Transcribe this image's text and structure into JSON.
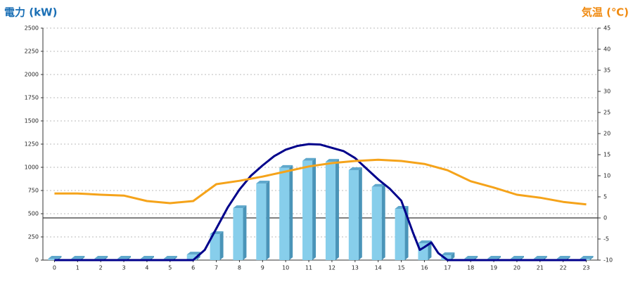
{
  "chart_data": {
    "type": "bar",
    "y_title": "電力 (kW)",
    "y2_title": "気温 (℃)",
    "categories": [
      "0",
      "1",
      "2",
      "3",
      "4",
      "5",
      "6",
      "7",
      "8",
      "9",
      "10",
      "11",
      "12",
      "13",
      "14",
      "15",
      "16",
      "17",
      "18",
      "19",
      "20",
      "21",
      "22",
      "23"
    ],
    "series": [
      {
        "type": "bar",
        "color": "#87ceeb",
        "values": [
          15,
          15,
          15,
          15,
          15,
          15,
          60,
          280,
          560,
          826,
          993,
          1070,
          1060,
          970,
          790,
          553,
          182,
          53,
          15,
          15,
          15,
          15,
          15,
          15
        ]
      },
      {
        "type": "line",
        "color": "#00008b",
        "x": [
          0,
          6,
          6.5,
          7,
          7.5,
          8,
          8.5,
          9,
          9.5,
          10,
          10.5,
          11,
          11.5,
          12,
          12.5,
          13,
          13.5,
          14,
          14.5,
          15,
          15.5,
          15.8,
          16,
          16.3,
          16.6,
          17,
          23
        ],
        "values": [
          0,
          0,
          110,
          340,
          570,
          760,
          910,
          1020,
          1120,
          1190,
          1230,
          1250,
          1245,
          1210,
          1175,
          1100,
          985,
          870,
          770,
          640,
          300,
          110,
          140,
          190,
          75,
          0,
          0
        ]
      },
      {
        "type": "line",
        "axis": "y2",
        "color": "#f5a31a",
        "x": [
          0,
          1,
          2,
          3,
          4,
          5,
          6,
          7,
          8,
          9,
          10,
          11,
          12,
          13,
          14,
          15,
          16,
          17,
          18,
          19,
          20,
          21,
          22,
          23
        ],
        "values": [
          5.8,
          5.8,
          5.5,
          5.3,
          4,
          3.5,
          4,
          8,
          8.8,
          9.8,
          11,
          12.2,
          13,
          13.5,
          13.8,
          13.5,
          12.8,
          11.3,
          8.7,
          7.2,
          5.5,
          4.8,
          3.8,
          3.2
        ]
      }
    ],
    "xlim": [
      -0.5,
      23.5
    ],
    "ylim": [
      0,
      2500
    ],
    "yticks": [
      0,
      250,
      500,
      750,
      1000,
      1250,
      1500,
      1750,
      2000,
      2250,
      2500
    ],
    "y2lim": [
      -10,
      45
    ],
    "y2ticks": [
      -10,
      -5,
      0,
      5,
      10,
      15,
      20,
      25,
      30,
      35,
      40,
      45
    ],
    "grid": true,
    "y2_zero_line": true
  }
}
